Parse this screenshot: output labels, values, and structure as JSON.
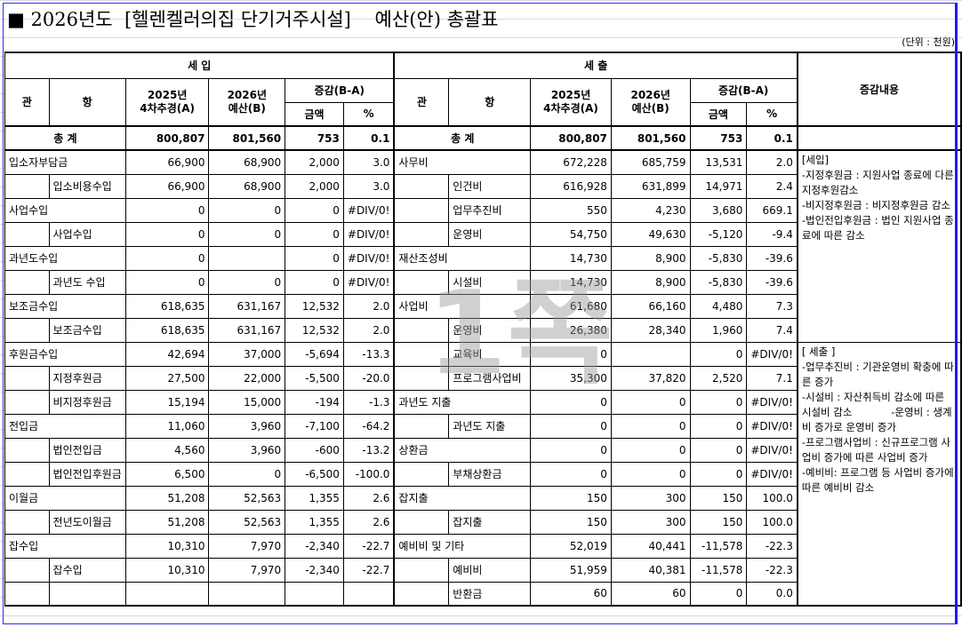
{
  "title": "■ 2026년도  [헬렌켈러의집 단기거주시설]    예산(안) 총괄표",
  "unit": "(단위 : 천원)",
  "watermark": "1쪽",
  "headers": {
    "income": "세 입",
    "expense": "세 출",
    "remarks": "증감내용",
    "kwan": "관",
    "hang": "항",
    "prev": "2025년\n4차추경(A)",
    "cur": "2026년\n예산(B)",
    "diff": "증감(B-A)",
    "amount": "금액",
    "pct": "%",
    "total": "총  계"
  },
  "totals": {
    "income": [
      "800,807",
      "801,560",
      "753",
      "0.1"
    ],
    "expense": [
      "800,807",
      "801,560",
      "753",
      "0.1"
    ]
  },
  "income_rows": [
    [
      "입소자부담금",
      "",
      "66,900",
      "68,900",
      "2,000",
      "3.0"
    ],
    [
      "",
      "입소비용수입",
      "66,900",
      "68,900",
      "2,000",
      "3.0"
    ],
    [
      "사업수입",
      "",
      "0",
      "0",
      "0",
      "#DIV/0!"
    ],
    [
      "",
      "사업수입",
      "0",
      "0",
      "0",
      "#DIV/0!"
    ],
    [
      "과년도수입",
      "",
      "0",
      "",
      "0",
      "#DIV/0!"
    ],
    [
      "",
      "과년도 수입",
      "0",
      "0",
      "0",
      "#DIV/0!"
    ],
    [
      "보조금수입",
      "",
      "618,635",
      "631,167",
      "12,532",
      "2.0"
    ],
    [
      "",
      "보조금수입",
      "618,635",
      "631,167",
      "12,532",
      "2.0"
    ],
    [
      "후원금수입",
      "",
      "42,694",
      "37,000",
      "-5,694",
      "-13.3"
    ],
    [
      "",
      "지정후원금",
      "27,500",
      "22,000",
      "-5,500",
      "-20.0"
    ],
    [
      "",
      "비지정후원금",
      "15,194",
      "15,000",
      "-194",
      "-1.3"
    ],
    [
      "전입금",
      "",
      "11,060",
      "3,960",
      "-7,100",
      "-64.2"
    ],
    [
      "",
      "법인전입금",
      "4,560",
      "3,960",
      "-600",
      "-13.2"
    ],
    [
      "",
      "법인전입후원금",
      "6,500",
      "0",
      "-6,500",
      "-100.0"
    ],
    [
      "이월금",
      "",
      "51,208",
      "52,563",
      "1,355",
      "2.6"
    ],
    [
      "",
      "전년도이월금",
      "51,208",
      "52,563",
      "1,355",
      "2.6"
    ],
    [
      "잡수입",
      "",
      "10,310",
      "7,970",
      "-2,340",
      "-22.7"
    ],
    [
      "",
      "잡수입",
      "10,310",
      "7,970",
      "-2,340",
      "-22.7"
    ],
    [
      "",
      "",
      "",
      "",
      "",
      ""
    ]
  ],
  "expense_rows": [
    [
      "사무비",
      "",
      "672,228",
      "685,759",
      "13,531",
      "2.0"
    ],
    [
      "",
      "인건비",
      "616,928",
      "631,899",
      "14,971",
      "2.4"
    ],
    [
      "",
      "업무추진비",
      "550",
      "4,230",
      "3,680",
      "669.1"
    ],
    [
      "",
      "운영비",
      "54,750",
      "49,630",
      "-5,120",
      "-9.4"
    ],
    [
      "재산조성비",
      "",
      "14,730",
      "8,900",
      "-5,830",
      "-39.6"
    ],
    [
      "",
      "시설비",
      "14,730",
      "8,900",
      "-5,830",
      "-39.6"
    ],
    [
      "사업비",
      "",
      "61,680",
      "66,160",
      "4,480",
      "7.3"
    ],
    [
      "",
      "운영비",
      "26,380",
      "28,340",
      "1,960",
      "7.4"
    ],
    [
      "",
      "교육비",
      "0",
      "",
      "0",
      "#DIV/0!"
    ],
    [
      "",
      "프로그램사업비",
      "35,300",
      "37,820",
      "2,520",
      "7.1"
    ],
    [
      "과년도 지출",
      "",
      "0",
      "0",
      "0",
      "#DIV/0!"
    ],
    [
      "",
      "과년도 지출",
      "0",
      "0",
      "0",
      "#DIV/0!"
    ],
    [
      "상환금",
      "",
      "0",
      "0",
      "0",
      "#DIV/0!"
    ],
    [
      "",
      "부채상환금",
      "0",
      "0",
      "0",
      "#DIV/0!"
    ],
    [
      "잡지출",
      "",
      "150",
      "300",
      "150",
      "100.0"
    ],
    [
      "",
      "잡지출",
      "150",
      "300",
      "150",
      "100.0"
    ],
    [
      "예비비 및 기타",
      "",
      "52,019",
      "40,441",
      "-11,578",
      "-22.3"
    ],
    [
      "",
      "예비비",
      "51,959",
      "40,381",
      "-11,578",
      "-22.3"
    ],
    [
      "",
      "반환금",
      "60",
      "60",
      "0",
      "0.0"
    ]
  ],
  "remarks": {
    "income": "[세입]\n-지정후원금 : 지원사업 종료에 다른 지정후원감소\n-비지정후원금 : 비지정후원금 감소\n-법인전입후원금 : 법인 지원사업 종료에 따른 감소",
    "expense": "[ 세출 ]\n-업무추진비 : 기관운영비 확충에 따른 증가\n-시설비 : 자산취득비 감소에 따른 시설비 감소            -운영비 : 생계비 증가로 운영비 증가\n-프로그램사업비 : 신규프로그램 사업비 증가에 따른 사업비 증가\n-예비비: 프로그램 등 사업비 증가에 따른 예비비 감소"
  }
}
